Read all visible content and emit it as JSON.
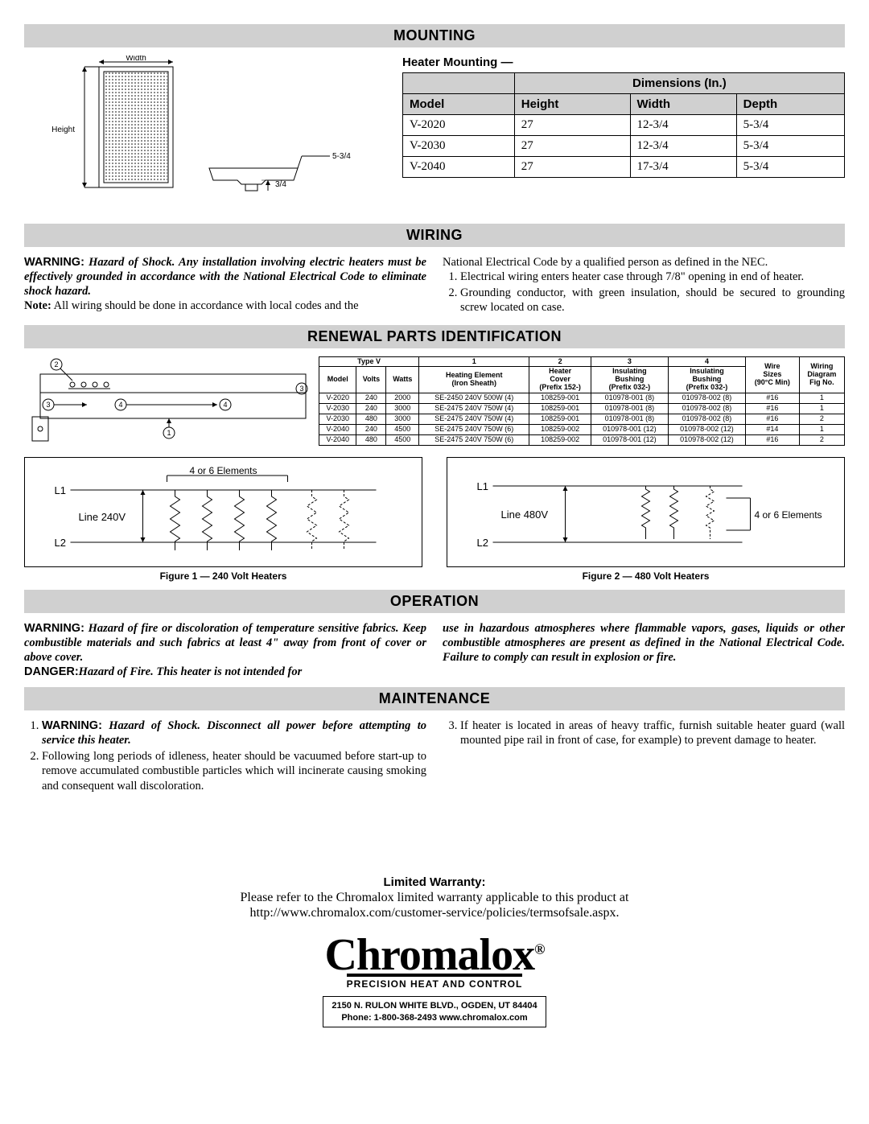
{
  "sections": {
    "mounting": "MOUNTING",
    "wiring": "WIRING",
    "renewal": "RENEWAL PARTS IDENTIFICATION",
    "operation": "OPERATION",
    "maintenance": "MAINTENANCE"
  },
  "mounting": {
    "diag": {
      "width_lbl": "Width",
      "height_lbl": "Height",
      "top_dim": "5-3/4",
      "side_dim": "3/4"
    },
    "heading": "Heater Mounting —",
    "table": {
      "span_hdr": "Dimensions (In.)",
      "cols": [
        "Model",
        "Height",
        "Width",
        "Depth"
      ],
      "rows": [
        [
          "V-2020",
          "27",
          "12-3/4",
          "5-3/4"
        ],
        [
          "V-2030",
          "27",
          "12-3/4",
          "5-3/4"
        ],
        [
          "V-2040",
          "27",
          "17-3/4",
          "5-3/4"
        ]
      ]
    }
  },
  "wiring": {
    "left_warn_label": "WARNING:",
    "left_warn_text": " Hazard of Shock. Any installation involving electric heaters must be effectively grounded in accordance with the National Electrical Code to eliminate shock hazard.",
    "note_label": "Note:",
    "note_text": " All wiring should be done in accordance with local codes and the",
    "right_intro": "National Electrical Code by a qualified person as defined in the NEC.",
    "right_1": "Electrical wiring enters heater case through 7/8\" opening in end of heater.",
    "right_2": "Grounding conductor, with green insulation, should be secured to grounding screw located on case."
  },
  "renewal": {
    "diag_labels": {
      "n1": "1",
      "n2": "2",
      "n3": "3",
      "n4": "4"
    },
    "table": {
      "grp1": "Type V",
      "grp2_top": "1",
      "grp2_bot": "Heating Element\n(Iron Sheath)",
      "grp3_top": "2",
      "grp3_bot": "Heater\nCover\n(Prefix 152-)",
      "grp4_top": "3",
      "grp4_bot": "Insulating\nBushing\n(Prefix 032-)",
      "grp5_top": "4",
      "grp5_bot": "Insulating\nBushing\n(Prefix 032-)",
      "grp6": "Wire\nSizes\n(90°C Min)",
      "grp7": "Wiring\nDiagram\nFig No.",
      "sub": [
        "Model",
        "Volts",
        "Watts"
      ],
      "rows": [
        [
          "V-2020",
          "240",
          "2000",
          "SE-2450 240V 500W (4)",
          "108259-001",
          "010978-001 (8)",
          "010978-002 (8)",
          "#16",
          "1"
        ],
        [
          "V-2030",
          "240",
          "3000",
          "SE-2475 240V 750W (4)",
          "108259-001",
          "010978-001 (8)",
          "010978-002 (8)",
          "#16",
          "1"
        ],
        [
          "V-2030",
          "480",
          "3000",
          "SE-2475 240V 750W (4)",
          "108259-001",
          "010978-001 (8)",
          "010978-002 (8)",
          "#16",
          "2"
        ],
        [
          "V-2040",
          "240",
          "4500",
          "SE-2475 240V 750W (6)",
          "108259-002",
          "010978-001 (12)",
          "010978-002 (12)",
          "#14",
          "1"
        ],
        [
          "V-2040",
          "480",
          "4500",
          "SE-2475 240V 750W (6)",
          "108259-002",
          "010978-001 (12)",
          "010978-002 (12)",
          "#16",
          "2"
        ]
      ]
    },
    "circuit1": {
      "top_label": "4 or 6 Elements",
      "l1": "L1",
      "l2": "L2",
      "line": "Line 240V"
    },
    "circuit2": {
      "top_label": "4 or 6 Elements",
      "l1": "L1",
      "l2": "L2",
      "line": "Line 480V"
    },
    "fig1": "Figure 1  —  240 Volt Heaters",
    "fig2": "Figure 2  —  480 Volt Heaters"
  },
  "operation": {
    "warn_label": "WARNING:",
    "warn_text": " Hazard of fire or discoloration of temperature sensitive fabrics. Keep combustible materials and such fabrics at least 4\" away from front of cover or above cover.",
    "danger_label": "DANGER:",
    "danger_text": "Hazard of Fire. This heater is not intended for",
    "right_text": "use in hazardous atmospheres where flammable vapors, gases, liquids or other combustible atmospheres are present as defined in the National Electrical Code. Failure to comply can result in explosion or fire."
  },
  "maintenance": {
    "item1_label": "WARNING:",
    "item1_text": " Hazard of Shock. Disconnect all power before attempting to service this heater.",
    "item2": "Following long periods of idleness, heater should be vacuumed before start-up to remove accumulated combustible particles which will incinerate causing smoking and consequent wall discoloration.",
    "item3": "If heater is located in areas of heavy traffic, furnish suitable heater guard (wall mounted pipe rail in front of case, for example) to prevent damage to heater."
  },
  "footer": {
    "lw_label": "Limited Warranty:",
    "lw_line1": "Please refer to the Chromalox limited warranty applicable to this product at",
    "lw_line2": "http://www.chromalox.com/customer-service/policies/termsofsale.aspx.",
    "logo": "Chromalox",
    "tagline": "PRECISION HEAT AND CONTROL",
    "addr1": "2150 N. RULON WHITE BLVD., OGDEN, UT 84404",
    "addr2": "Phone: 1-800-368-2493        www.chromalox.com"
  }
}
